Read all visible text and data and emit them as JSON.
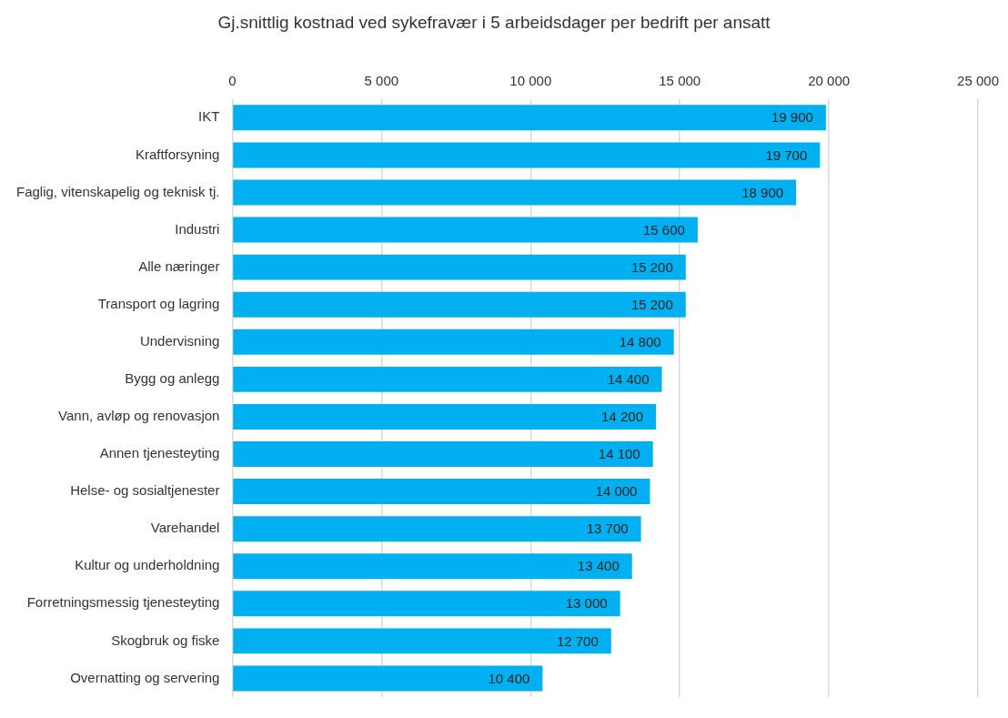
{
  "chart_data": {
    "type": "bar",
    "orientation": "horizontal",
    "title": "Gj.snittlig kostnad ved sykefravær i 5 arbeidsdager per bedrift per ansatt",
    "categories": [
      "IKT",
      "Kraftforsyning",
      "Faglig, vitenskapelig og teknisk tj.",
      "Industri",
      "Alle næringer",
      "Transport og lagring",
      "Undervisning",
      "Bygg og anlegg",
      "Vann, avløp og renovasjon",
      "Annen tjenesteyting",
      "Helse- og sosialtjenester",
      "Varehandel",
      "Kultur og underholdning",
      "Forretningsmessig tjenesteyting",
      "Skogbruk og fiske",
      "Overnatting og servering"
    ],
    "values": [
      19900,
      19700,
      18900,
      15600,
      15200,
      15200,
      14800,
      14400,
      14200,
      14100,
      14000,
      13700,
      13400,
      13000,
      12700,
      10400
    ],
    "value_labels": [
      "19 900",
      "19 700",
      "18 900",
      "15 600",
      "15 200",
      "15 200",
      "14 800",
      "14 400",
      "14 200",
      "14 100",
      "14 000",
      "13 700",
      "13 400",
      "13 000",
      "12 700",
      "10 400"
    ],
    "color": "#00b0f0",
    "xlim": [
      0,
      25000
    ],
    "xticks": [
      0,
      {
        "value": 5000,
        "label": "5 000"
      },
      {
        "value": 10000,
        "label": "10 000"
      },
      {
        "value": 15000,
        "label": "15 000"
      },
      {
        "value": 20000,
        "label": "20 000"
      },
      {
        "value": 25000,
        "label": "25 000"
      }
    ],
    "grid": "x"
  }
}
